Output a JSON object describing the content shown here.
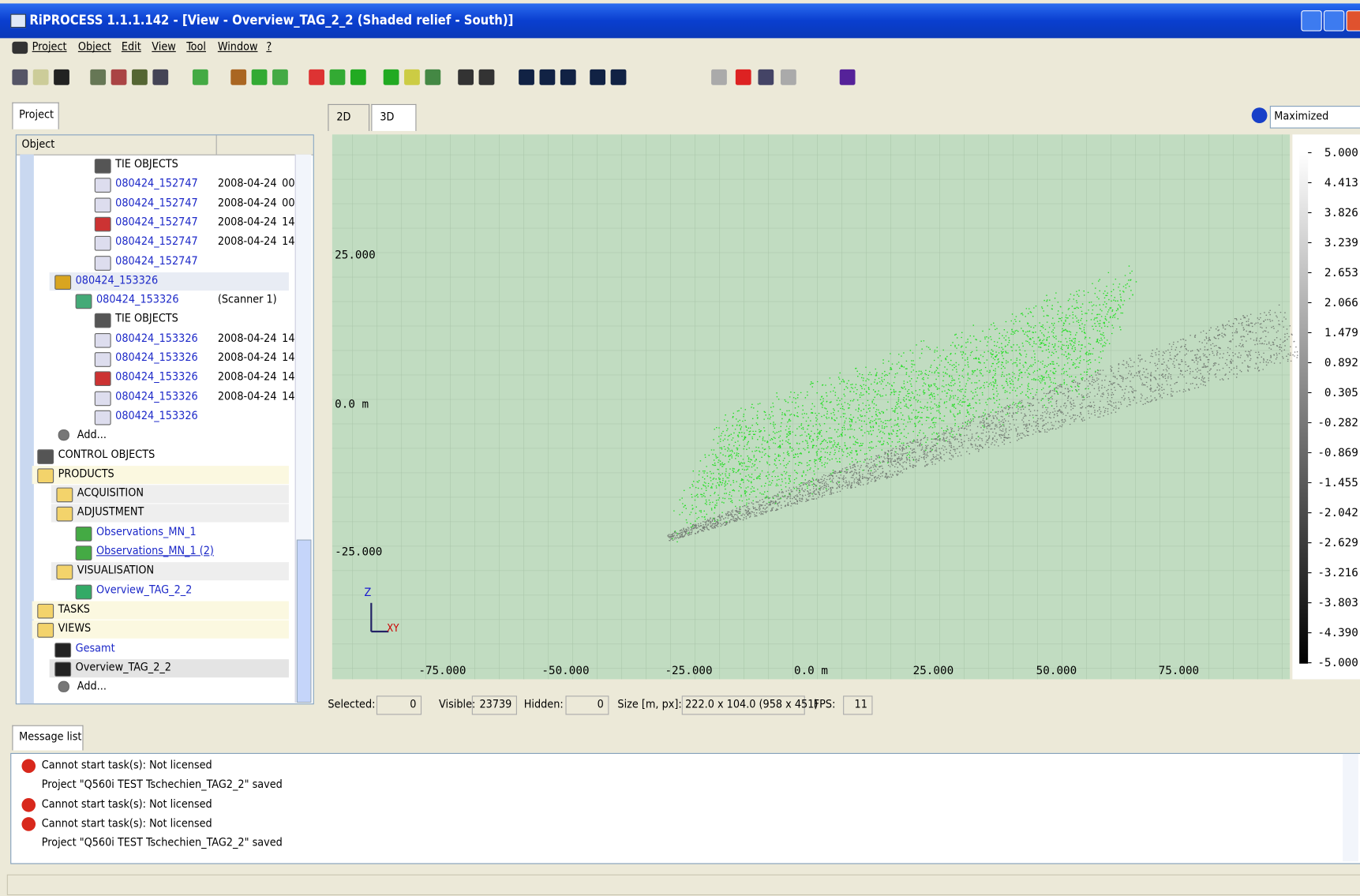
{
  "window": {
    "title": "RiPROCESS 1.1.1.142 - [View - Overview_TAG_2_2 (Shaded relief - South)]"
  },
  "menu": [
    "Project",
    "Object",
    "Edit",
    "View",
    "Tool",
    "Window",
    "?"
  ],
  "project_panel": {
    "tab": "Project",
    "column": "Object",
    "rows": [
      {
        "label": "TIE OBJECTS"
      },
      {
        "label": "080424_152747",
        "date": "2008-04-24",
        "time": "00"
      },
      {
        "label": "080424_152747",
        "date": "2008-04-24",
        "time": "00"
      },
      {
        "label": "080424_152747",
        "date": "2008-04-24",
        "time": "14"
      },
      {
        "label": "080424_152747",
        "date": "2008-04-24",
        "time": "14"
      },
      {
        "label": "080424_152747"
      },
      {
        "label": "080424_153326"
      },
      {
        "label": "080424_153326",
        "date": "(Scanner 1)"
      },
      {
        "label": "TIE OBJECTS"
      },
      {
        "label": "080424_153326",
        "date": "2008-04-24",
        "time": "14"
      },
      {
        "label": "080424_153326",
        "date": "2008-04-24",
        "time": "14"
      },
      {
        "label": "080424_153326",
        "date": "2008-04-24",
        "time": "14"
      },
      {
        "label": "080424_153326",
        "date": "2008-04-24",
        "time": "14"
      },
      {
        "label": "080424_153326"
      },
      {
        "label": "Add..."
      },
      {
        "label": "CONTROL OBJECTS"
      },
      {
        "label": "PRODUCTS"
      },
      {
        "label": "ACQUISITION"
      },
      {
        "label": "ADJUSTMENT"
      },
      {
        "label": "Observations_MN_1"
      },
      {
        "label": "Observations_MN_1 (2)"
      },
      {
        "label": "VISUALISATION"
      },
      {
        "label": "Overview_TAG_2_2"
      },
      {
        "label": "TASKS"
      },
      {
        "label": "VIEWS"
      },
      {
        "label": "Gesamt"
      },
      {
        "label": "Overview_TAG_2_2"
      },
      {
        "label": "Add..."
      }
    ]
  },
  "view": {
    "tabs": [
      "2D",
      "3D"
    ],
    "mode": "Maximized",
    "y_labels": [
      "25.000",
      "0.0 m",
      "-25.000"
    ],
    "x_labels": [
      "-75.000",
      "-50.000",
      "-25.000",
      "0.0 m",
      "25.000",
      "50.000",
      "75.000"
    ],
    "axis_z": "Z",
    "axis_xy": "XY",
    "scale_labels": [
      "5.000",
      "4.413",
      "3.826",
      "3.239",
      "2.653",
      "2.066",
      "1.479",
      "0.892",
      "0.305",
      "-0.282",
      "-0.869",
      "-1.455",
      "-2.042",
      "-2.629",
      "-3.216",
      "-3.803",
      "-4.390",
      "-5.000"
    ]
  },
  "status": [
    [
      "Selected:",
      "0"
    ],
    [
      "Visible:",
      "23739"
    ],
    [
      "Hidden:",
      "0"
    ],
    [
      "Size [m, px]:",
      "222.0 x 104.0 (958 x 451)"
    ],
    [
      "FPS:",
      "11"
    ]
  ],
  "messages": {
    "tab": "Message list",
    "lines": [
      "Cannot start task(s): Not licensed",
      "Project \"Q560i TEST Tschechien_TAG2_2\" saved",
      "Cannot start task(s): Not licensed",
      "Cannot start task(s): Not licensed",
      "Project \"Q560i TEST Tschechien_TAG2_2\" saved"
    ]
  }
}
